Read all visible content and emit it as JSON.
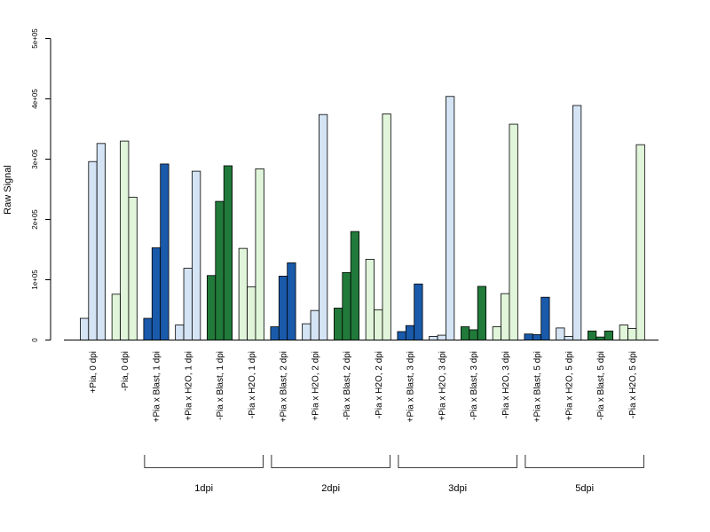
{
  "chart_data": {
    "type": "bar",
    "title": "",
    "xlabel": "",
    "ylabel": "Raw Signal",
    "ylim": [
      0,
      500000
    ],
    "yticks": [
      {
        "value": 0,
        "label": "0"
      },
      {
        "value": 100000,
        "label": "1e+05"
      },
      {
        "value": 200000,
        "label": "2e+05"
      },
      {
        "value": 300000,
        "label": "3e+05"
      },
      {
        "value": 400000,
        "label": "4e+05"
      },
      {
        "value": 500000,
        "label": "5e+05"
      }
    ],
    "colors": {
      "light_blue": "#d4e4f5",
      "light_green": "#e0f5d9",
      "dark_blue": "#1a5aaa",
      "dark_green": "#217a3a"
    },
    "categories": [
      {
        "label": "+Pia, 0 dpi",
        "color": "light_blue",
        "values": [
          36000,
          296000,
          326000
        ]
      },
      {
        "label": "-Pia, 0 dpi",
        "color": "light_green",
        "values": [
          76000,
          330000,
          237000
        ]
      },
      {
        "label": "+Pia x Blast, 1 dpi",
        "color": "dark_blue",
        "values": [
          36000,
          153000,
          292000
        ]
      },
      {
        "label": "+Pia x H2O, 1 dpi",
        "color": "light_blue",
        "values": [
          25000,
          119000,
          280000
        ]
      },
      {
        "label": "-Pia x Blast, 1 dpi",
        "color": "dark_green",
        "values": [
          107000,
          230000,
          289000
        ]
      },
      {
        "label": "-Pia x H2O, 1 dpi",
        "color": "light_green",
        "values": [
          152000,
          88000,
          284000
        ]
      },
      {
        "label": "+Pia x Blast, 2 dpi",
        "color": "dark_blue",
        "values": [
          22000,
          106000,
          128000
        ]
      },
      {
        "label": "+Pia x H2O, 2 dpi",
        "color": "light_blue",
        "values": [
          27000,
          49000,
          374000
        ]
      },
      {
        "label": "-Pia x Blast, 2 dpi",
        "color": "dark_green",
        "values": [
          53000,
          112000,
          180000
        ]
      },
      {
        "label": "-Pia x H2O, 2 dpi",
        "color": "light_green",
        "values": [
          134000,
          50000,
          375000
        ]
      },
      {
        "label": "+Pia x Blast, 3 dpi",
        "color": "dark_blue",
        "values": [
          14000,
          24000,
          93000
        ]
      },
      {
        "label": "+Pia x H2O, 3 dpi",
        "color": "light_blue",
        "values": [
          6000,
          8000,
          404000
        ]
      },
      {
        "label": "-Pia x Blast, 3 dpi",
        "color": "dark_green",
        "values": [
          22000,
          17000,
          89000
        ]
      },
      {
        "label": "-Pia x H2O, 3 dpi",
        "color": "light_green",
        "values": [
          22000,
          77000,
          358000
        ]
      },
      {
        "label": "+Pia x Blast, 5 dpi",
        "color": "dark_blue",
        "values": [
          10000,
          9000,
          71000
        ]
      },
      {
        "label": "+Pia x H2O, 5 dpi",
        "color": "light_blue",
        "values": [
          20000,
          6000,
          389000
        ]
      },
      {
        "label": "-Pia x Blast, 5 dpi",
        "color": "dark_green",
        "values": [
          15000,
          5000,
          15000
        ]
      },
      {
        "label": "-Pia x H2O, 5 dpi",
        "color": "light_green",
        "values": [
          25000,
          19000,
          324000
        ]
      }
    ],
    "groups": [
      {
        "label": "1dpi",
        "from": 2,
        "to": 5
      },
      {
        "label": "2dpi",
        "from": 6,
        "to": 9
      },
      {
        "label": "3dpi",
        "from": 10,
        "to": 13
      },
      {
        "label": "5dpi",
        "from": 14,
        "to": 17
      }
    ]
  }
}
